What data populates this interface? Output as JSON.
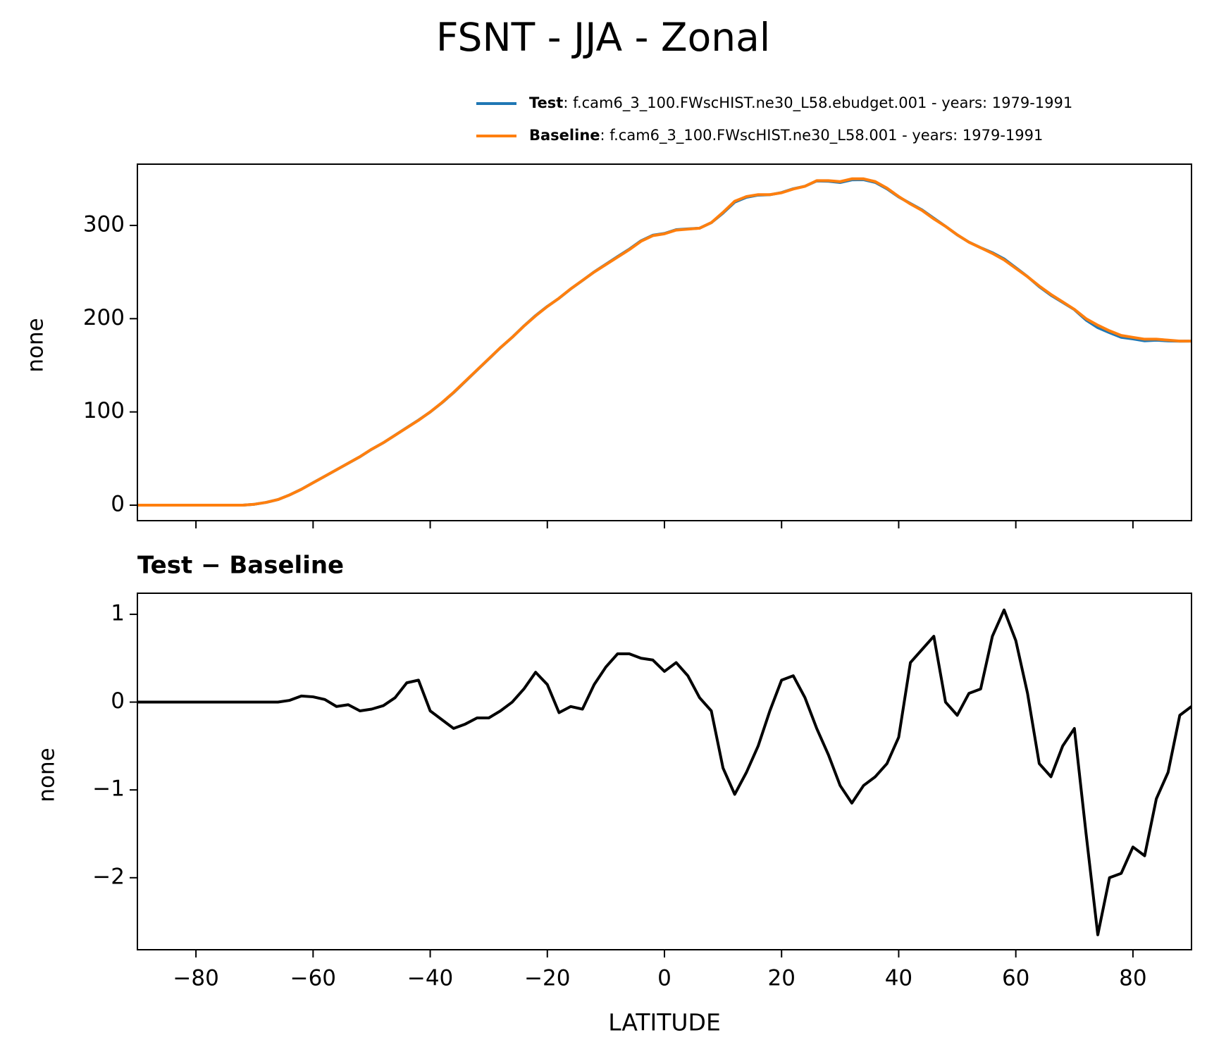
{
  "chart_data": [
    {
      "type": "line",
      "title": "FSNT - JJA - Zonal",
      "ylabel": "none",
      "legend": "upper right",
      "x": [
        -90,
        -88,
        -86,
        -84,
        -82,
        -80,
        -78,
        -76,
        -74,
        -72,
        -70,
        -68,
        -66,
        -64,
        -62,
        -60,
        -58,
        -56,
        -54,
        -52,
        -50,
        -48,
        -46,
        -44,
        -42,
        -40,
        -38,
        -36,
        -34,
        -32,
        -30,
        -28,
        -26,
        -24,
        -22,
        -20,
        -18,
        -16,
        -14,
        -12,
        -10,
        -8,
        -6,
        -4,
        -2,
        0,
        2,
        4,
        6,
        8,
        10,
        12,
        14,
        16,
        18,
        20,
        22,
        24,
        26,
        28,
        30,
        32,
        34,
        36,
        38,
        40,
        42,
        44,
        46,
        48,
        50,
        52,
        54,
        56,
        58,
        60,
        62,
        64,
        66,
        68,
        70,
        72,
        74,
        76,
        78,
        80,
        82,
        84,
        86,
        88,
        90
      ],
      "series": [
        {
          "name": "Test",
          "label": ": f.cam6_3_100.FWscHIST.ne30_L58.ebudget.001 - years: 1979-1991",
          "color": "#1f77b4",
          "values": [
            0,
            0,
            0,
            0,
            0,
            0,
            0,
            0,
            0,
            0,
            1,
            3,
            6,
            11.02,
            17.07,
            24.06,
            31.03,
            37.95,
            44.97,
            51.9,
            59.92,
            66.96,
            75.05,
            83.22,
            91.25,
            99.9,
            109.8,
            120.7,
            132.75,
            144.82,
            156.82,
            168.9,
            180,
            192.15,
            203.34,
            213.2,
            221.88,
            231.95,
            240.92,
            250.2,
            258.4,
            266.55,
            274.55,
            283.5,
            289.48,
            291.35,
            295.45,
            296.3,
            297.05,
            302.9,
            313.25,
            324.95,
            330.2,
            332.5,
            332.9,
            335.25,
            339.3,
            342.05,
            347.7,
            347.4,
            346.05,
            348.85,
            349.05,
            346.15,
            339.3,
            330.6,
            323.45,
            316.6,
            307.75,
            299,
            289.85,
            282.1,
            276.15,
            270.75,
            264.05,
            254.7,
            245.1,
            234.3,
            225.15,
            217.5,
            209.7,
            198.5,
            190.35,
            185,
            180.05,
            178.35,
            176.25,
            176.9,
            176.2,
            175.85,
            175.95
          ]
        },
        {
          "name": "Baseline",
          "label": ": f.cam6_3_100.FWscHIST.ne30_L58.001 - years: 1979-1991",
          "color": "#ff7f0e",
          "values": [
            0,
            0,
            0,
            0,
            0,
            0,
            0,
            0,
            0,
            0,
            1,
            3,
            6,
            11,
            17,
            24,
            31,
            38,
            45,
            52,
            60,
            67,
            75,
            83,
            91,
            100,
            110,
            121,
            133,
            145,
            157,
            169,
            180,
            192,
            203,
            213,
            222,
            232,
            241,
            250,
            258,
            266,
            274,
            283,
            289,
            291,
            295,
            296,
            297,
            303,
            314,
            326,
            331,
            333,
            333,
            335,
            339,
            342,
            348,
            348,
            347,
            350,
            350,
            347,
            340,
            331,
            323,
            316,
            307,
            299,
            290,
            282,
            276,
            270,
            263,
            254,
            245,
            235,
            226,
            218,
            210,
            200,
            193,
            187,
            182,
            180,
            178,
            178,
            177,
            176,
            176
          ]
        }
      ],
      "xlim": [
        -90,
        90
      ],
      "xticks": [
        -80,
        -60,
        -40,
        -20,
        0,
        20,
        40,
        60,
        80
      ],
      "ylim": [
        -16.6,
        365.7
      ],
      "yticks": [
        0,
        100,
        200,
        300
      ]
    },
    {
      "type": "line",
      "title": "Test − Baseline",
      "xlabel": "LATITUDE",
      "ylabel": "none",
      "x": [
        -90,
        -88,
        -86,
        -84,
        -82,
        -80,
        -78,
        -76,
        -74,
        -72,
        -70,
        -68,
        -66,
        -64,
        -62,
        -60,
        -58,
        -56,
        -54,
        -52,
        -50,
        -48,
        -46,
        -44,
        -42,
        -40,
        -38,
        -36,
        -34,
        -32,
        -30,
        -28,
        -26,
        -24,
        -22,
        -20,
        -18,
        -16,
        -14,
        -12,
        -10,
        -8,
        -6,
        -4,
        -2,
        0,
        2,
        4,
        6,
        8,
        10,
        12,
        14,
        16,
        18,
        20,
        22,
        24,
        26,
        28,
        30,
        32,
        34,
        36,
        38,
        40,
        42,
        44,
        46,
        48,
        50,
        52,
        54,
        56,
        58,
        60,
        62,
        64,
        66,
        68,
        70,
        72,
        74,
        76,
        78,
        80,
        82,
        84,
        86,
        88,
        90
      ],
      "series": [
        {
          "color": "#000000",
          "values": [
            0,
            0,
            0,
            0,
            0,
            0,
            0,
            0,
            0,
            0,
            0,
            0,
            0,
            0.02,
            0.07,
            0.06,
            0.03,
            -0.05,
            -0.03,
            -0.1,
            -0.08,
            -0.04,
            0.05,
            0.22,
            0.25,
            -0.1,
            -0.2,
            -0.3,
            -0.25,
            -0.18,
            -0.18,
            -0.1,
            0,
            0.15,
            0.34,
            0.2,
            -0.12,
            -0.05,
            -0.08,
            0.2,
            0.4,
            0.55,
            0.55,
            0.5,
            0.48,
            0.35,
            0.45,
            0.3,
            0.05,
            -0.1,
            -0.75,
            -1.05,
            -0.8,
            -0.5,
            -0.1,
            0.25,
            0.3,
            0.05,
            -0.3,
            -0.6,
            -0.95,
            -1.15,
            -0.95,
            -0.85,
            -0.7,
            -0.4,
            0.45,
            0.6,
            0.75,
            0,
            -0.15,
            0.1,
            0.15,
            0.75,
            1.05,
            0.7,
            0.1,
            -0.7,
            -0.85,
            -0.5,
            -0.3,
            -1.5,
            -2.65,
            -2,
            -1.95,
            -1.65,
            -1.75,
            -1.1,
            -0.8,
            -0.15,
            -0.05
          ]
        }
      ],
      "xlim": [
        -90,
        90
      ],
      "xticks": [
        {
          "value": -80,
          "label": "−80"
        },
        {
          "value": -60,
          "label": "−60"
        },
        {
          "value": -40,
          "label": "−40"
        },
        {
          "value": -20,
          "label": "−20"
        },
        0,
        20,
        40,
        60,
        80
      ],
      "ylim": [
        -2.82,
        1.24
      ],
      "yticks": [
        1,
        0,
        {
          "value": -1,
          "label": "−1"
        },
        {
          "value": -2,
          "label": "−2"
        }
      ]
    }
  ]
}
